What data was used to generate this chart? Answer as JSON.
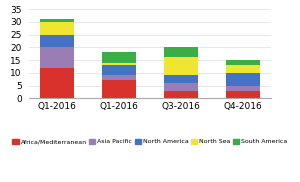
{
  "categories": [
    "Q1-2016",
    "Q1-2016",
    "Q3-2016",
    "Q4-2016"
  ],
  "series": {
    "Africa/Mediterranean": [
      12,
      7,
      3,
      3
    ],
    "Asia Pacific": [
      8,
      2,
      3,
      2
    ],
    "North America": [
      5,
      4,
      3,
      5
    ],
    "North Sea": [
      5,
      1,
      7,
      3
    ],
    "South America": [
      1,
      4,
      4,
      2
    ]
  },
  "colors": {
    "Africa/Mediterranean": "#d9312b",
    "Asia Pacific": "#9b7db5",
    "North America": "#4472c4",
    "North Sea": "#f0e530",
    "South America": "#3aad45"
  },
  "ylim": [
    0,
    35
  ],
  "yticks": [
    0,
    5,
    10,
    15,
    20,
    25,
    30,
    35
  ],
  "legend_order": [
    "Africa/Mediterranean",
    "Asia Pacific",
    "North America",
    "North Sea",
    "South America"
  ],
  "background_color": "#ffffff",
  "bar_width": 0.55
}
